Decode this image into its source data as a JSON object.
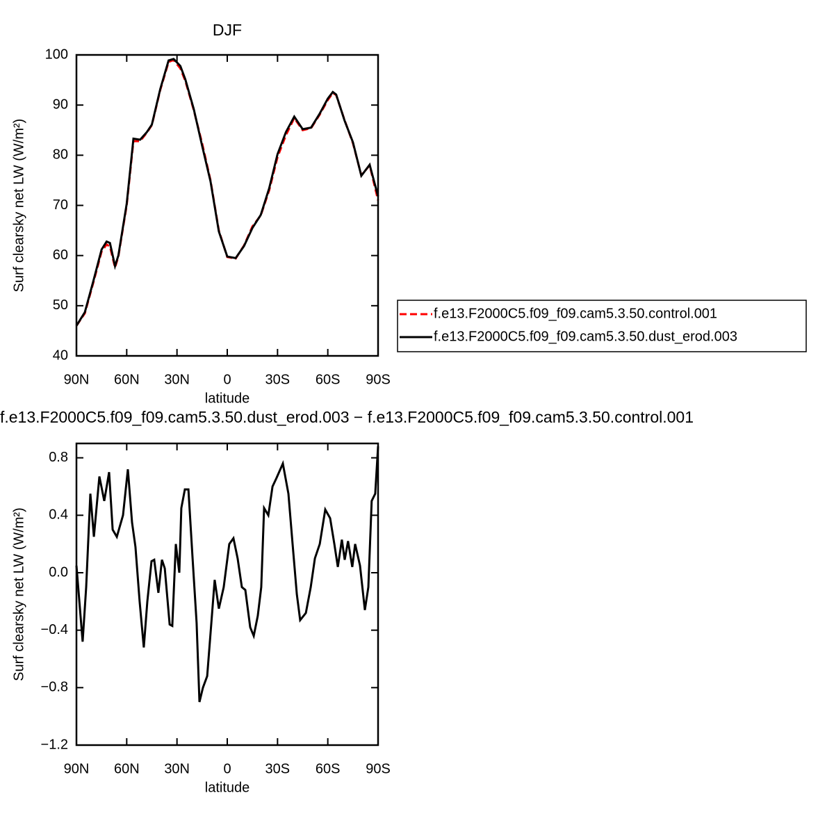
{
  "chart_data": [
    {
      "type": "line",
      "title": "DJF",
      "xlabel": "latitude",
      "ylabel": "Surf clearsky net LW (W/m²)",
      "x": [
        90,
        85,
        80,
        75,
        72,
        70,
        67,
        65,
        60,
        56,
        52,
        48,
        45,
        40,
        35,
        32,
        28,
        25,
        20,
        15,
        10,
        5,
        0,
        -5,
        -10,
        -15,
        -20,
        -25,
        -30,
        -35,
        -40,
        -45,
        -50,
        -55,
        -60,
        -63,
        -65,
        -70,
        -75,
        -80,
        -85,
        -90
      ],
      "xlim": [
        90,
        -90
      ],
      "xticks": [
        {
          "value": 90,
          "label": "90N"
        },
        {
          "value": 60,
          "label": "60N"
        },
        {
          "value": 30,
          "label": "30N"
        },
        0,
        {
          "value": -30,
          "label": "30S"
        },
        {
          "value": -60,
          "label": "60S"
        },
        {
          "value": -90,
          "label": "90S"
        }
      ],
      "ylim": [
        40,
        100
      ],
      "yticks": [
        40,
        50,
        60,
        70,
        80,
        90,
        100
      ],
      "legend": "right",
      "series": [
        {
          "name": "f.e13.F2000C5.f09_f09.cam5.3.50.control.001",
          "color": "#ff0000",
          "line_style": "dashed",
          "values": [
            46,
            48.5,
            54.5,
            60.8,
            62.2,
            61.8,
            57.6,
            59.8,
            70,
            82.8,
            82.8,
            84.5,
            86,
            93,
            98.6,
            99,
            97.3,
            94.8,
            89,
            82.4,
            75,
            65,
            59.7,
            59.4,
            62,
            65.8,
            68,
            73,
            79.6,
            84,
            87.4,
            85,
            85.4,
            88,
            91,
            92.4,
            92,
            87,
            82.4,
            76,
            78,
            71
          ]
        },
        {
          "name": "f.e13.F2000C5.f09_f09.cam5.3.50.dust_erod.003",
          "color": "#000000",
          "line_style": "solid",
          "values": [
            46,
            48.7,
            54.8,
            61.2,
            62.8,
            62.5,
            57.9,
            60,
            70.3,
            83.3,
            83.1,
            84.6,
            86.1,
            93.2,
            98.9,
            99.2,
            97.8,
            95.1,
            89.2,
            81.9,
            74.8,
            64.8,
            59.8,
            59.5,
            61.9,
            65.5,
            68.1,
            73.4,
            80.2,
            84.6,
            87.7,
            85.2,
            85.5,
            88.2,
            91.3,
            92.6,
            92.1,
            86.9,
            82.6,
            75.9,
            78.1,
            71.8
          ]
        }
      ]
    },
    {
      "type": "line",
      "title": "f.e13.F2000C5.f09_f09.cam5.3.50.dust_erod.003 − f.e13.F2000C5.f09_f09.cam5.3.50.control.001",
      "xlabel": "latitude",
      "ylabel": "Surf clearsky net LW (W/m²)",
      "x": [
        90,
        86.3,
        84.2,
        81.7,
        79.6,
        76.3,
        73.4,
        70.5,
        68.4,
        65.9,
        62.2,
        59.3,
        56.8,
        54.8,
        52.3,
        49.8,
        47.7,
        45.2,
        43.6,
        41.1,
        39,
        37.3,
        34.4,
        32.8,
        30.7,
        28.6,
        27.4,
        25.3,
        23.2,
        20.7,
        18.3,
        16.6,
        14.5,
        12,
        9.5,
        7.5,
        5,
        2.1,
        -1.2,
        -3.7,
        -6.2,
        -8.7,
        -10.8,
        -13.7,
        -15.8,
        -18.2,
        -20.3,
        -22,
        -24.5,
        -27,
        -29.4,
        -33.2,
        -36.5,
        -39,
        -41.5,
        -43.5,
        -46.9,
        -49.8,
        -52.3,
        -55.2,
        -58.5,
        -61.4,
        -63.9,
        -66,
        -68.4,
        -70.1,
        -72.1,
        -74.6,
        -76.3,
        -79.2,
        -82.1,
        -84.2,
        -86.2,
        -88.3,
        -90
      ],
      "xlim": [
        90,
        -90
      ],
      "xticks": [
        {
          "value": 90,
          "label": "90N"
        },
        {
          "value": 60,
          "label": "60N"
        },
        {
          "value": 30,
          "label": "30N"
        },
        0,
        {
          "value": -30,
          "label": "30S"
        },
        {
          "value": -60,
          "label": "60S"
        },
        {
          "value": -90,
          "label": "90S"
        }
      ],
      "ylim": [
        -1.2,
        0.9
      ],
      "yticks": [
        {
          "value": -1.2,
          "label": "−1.2"
        },
        {
          "value": -0.8,
          "label": "−0.8"
        },
        {
          "value": -0.4,
          "label": "−0.4"
        },
        {
          "value": 0,
          "label": "0.0"
        },
        0.4,
        0.8
      ],
      "series": [
        {
          "color": "#000000",
          "line_style": "solid",
          "values": [
            0.05,
            -0.48,
            -0.1,
            0.55,
            0.25,
            0.67,
            0.5,
            0.7,
            0.3,
            0.25,
            0.4,
            0.72,
            0.35,
            0.18,
            -0.2,
            -0.52,
            -0.2,
            0.08,
            0.09,
            -0.14,
            0.09,
            0.03,
            -0.36,
            -0.37,
            0.2,
            0,
            0.45,
            0.58,
            0.58,
            0.1,
            -0.35,
            -0.9,
            -0.8,
            -0.72,
            -0.35,
            -0.05,
            -0.25,
            -0.1,
            0.2,
            0.24,
            0.1,
            -0.1,
            -0.12,
            -0.38,
            -0.44,
            -0.3,
            -0.1,
            0.45,
            0.4,
            0.6,
            0.66,
            0.76,
            0.55,
            0.2,
            -0.15,
            -0.33,
            -0.28,
            -0.1,
            0.1,
            0.2,
            0.44,
            0.38,
            0.2,
            0.04,
            0.23,
            0.09,
            0.22,
            0.04,
            0.2,
            0.05,
            -0.26,
            -0.1,
            0.5,
            0.55,
            0.88
          ]
        }
      ]
    }
  ]
}
